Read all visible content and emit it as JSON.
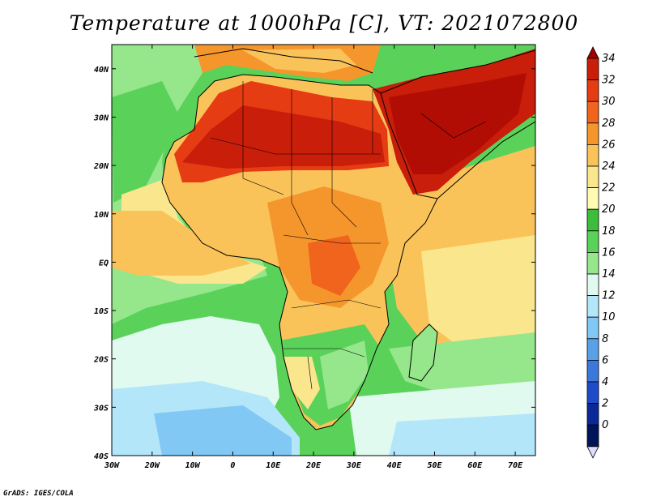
{
  "title": "Temperature at 1000hPa [C], VT: 2021072800",
  "credit": "GrADS: IGES/COLA",
  "map": {
    "lon_range": [
      -30,
      75
    ],
    "lat_range": [
      -40,
      45
    ],
    "x_ticks": [
      "30W",
      "20W",
      "10W",
      "0",
      "10E",
      "20E",
      "30E",
      "40E",
      "50E",
      "60E",
      "70E"
    ],
    "y_ticks": [
      "40N",
      "30N",
      "20N",
      "10N",
      "EQ",
      "10S",
      "20S",
      "30S",
      "40S"
    ]
  },
  "colorbar": {
    "levels": [
      "34",
      "32",
      "30",
      "28",
      "26",
      "24",
      "22",
      "20",
      "18",
      "16",
      "14",
      "12",
      "10",
      "8",
      "6",
      "4",
      "2",
      "0"
    ],
    "colors": [
      "#a00000",
      "#c81e0a",
      "#e63c14",
      "#f0641e",
      "#f5962d",
      "#fac35a",
      "#fae68c",
      "#fffab4",
      "#3cbe3c",
      "#5ad25a",
      "#96e68c",
      "#e1faf0",
      "#b4e6fa",
      "#82c8f5",
      "#5aa0e6",
      "#3c78dc",
      "#1e4bc8",
      "#0a2896",
      "#00145a",
      "#dcdcff"
    ]
  }
}
